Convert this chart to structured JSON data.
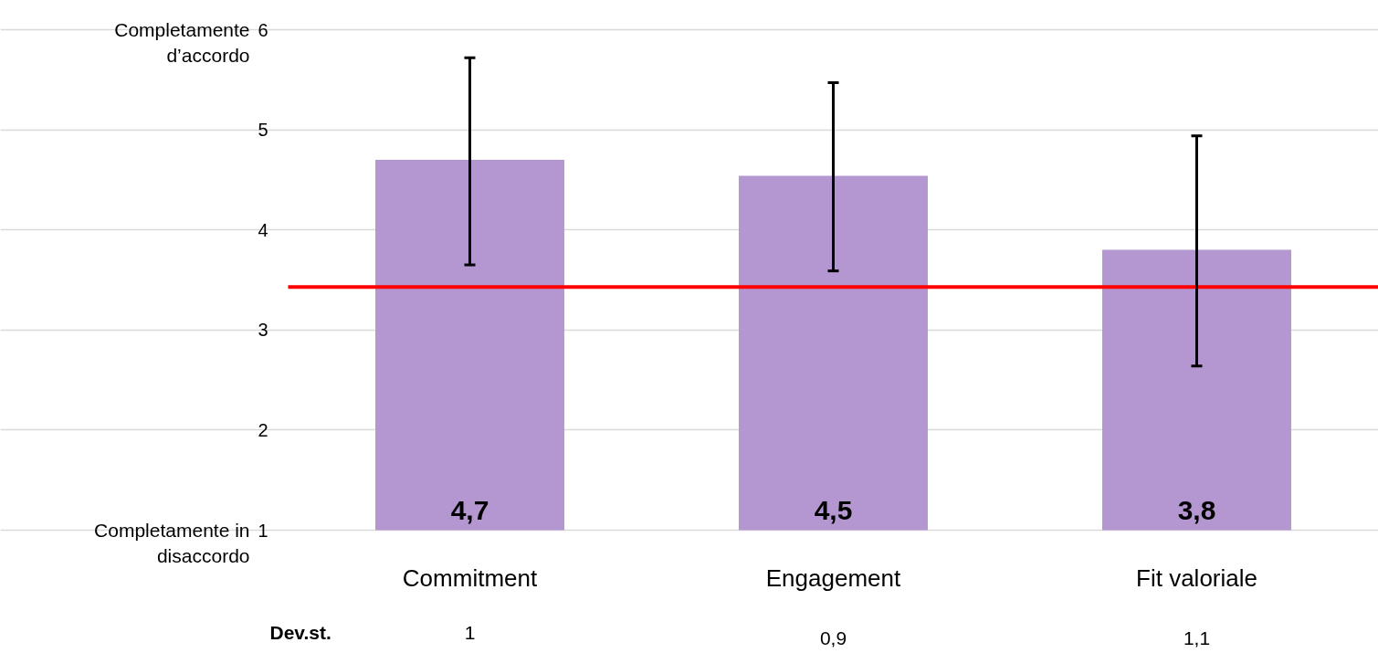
{
  "chart_data": {
    "type": "bar",
    "categories": [
      "Commitment",
      "Engagement",
      "Fit valoriale"
    ],
    "values": [
      4.7,
      4.54,
      3.8
    ],
    "value_labels": [
      "4,7",
      "4,5",
      "3,8"
    ],
    "errors": [
      [
        3.65,
        5.72
      ],
      [
        3.59,
        5.47
      ],
      [
        2.64,
        4.94
      ]
    ],
    "color": "#b497d0",
    "ylim": [
      1,
      6
    ],
    "yticks": [
      1,
      2,
      3,
      4,
      5,
      6
    ],
    "grid": "y",
    "ref_lines": [
      {
        "axis": "y",
        "value": 3.43,
        "color": "#ff0000"
      }
    ],
    "annotations": [
      "Completamente d’accordo",
      "Completamente in disaccordo",
      "Dev.st.",
      "1",
      "0,9",
      "1,1"
    ]
  }
}
